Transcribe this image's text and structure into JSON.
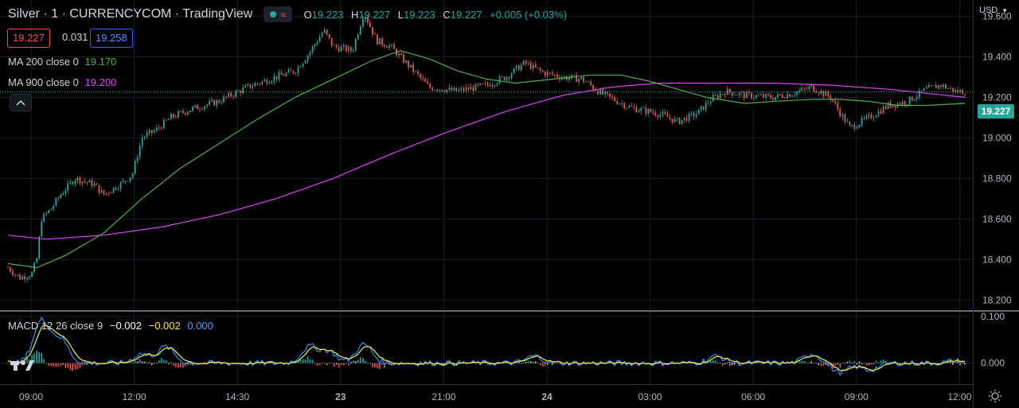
{
  "header": {
    "symbol": "Silver · 1 · CURRENCYCOM · TradingView",
    "ohlc": [
      {
        "k": "O",
        "v": "19.223"
      },
      {
        "k": "H",
        "v": "19.227"
      },
      {
        "k": "L",
        "v": "19.223"
      },
      {
        "k": "C",
        "v": "19.227"
      }
    ],
    "change": "+0.005 (+0.03%)",
    "sell_price": "19.227",
    "spread": "0.031",
    "buy_price": "19.258"
  },
  "indicators": {
    "ma200": {
      "label": "MA 200 close 0",
      "value": "19.170",
      "color": "#4caf50"
    },
    "ma900": {
      "label": "MA 900 close 0",
      "value": "19.200",
      "color": "#e040fb"
    },
    "macd": {
      "label": "MACD 12 26 close 9",
      "hist": "−0.002",
      "macd": "−0.002",
      "signal": "0.000"
    }
  },
  "currency": "USD",
  "last_price_label": "19.227",
  "colors": {
    "up": "#26a69a",
    "down": "#ef5350",
    "ma200": "#4caf50",
    "ma900": "#e040fb",
    "macd": "#2196f3",
    "signal": "#ffeb3b"
  },
  "chart_data": {
    "type": "candlestick",
    "price_axis": {
      "ticks": [
        "19.600",
        "19.400",
        "19.200",
        "19.000",
        "18.800",
        "18.600",
        "18.400",
        "18.200"
      ],
      "ylim": [
        18.15,
        19.68
      ]
    },
    "macd_axis": {
      "ticks": [
        "0.100",
        "0.000"
      ],
      "ylim": [
        -0.045,
        0.11
      ]
    },
    "time_axis": {
      "ticks": [
        "09:00",
        "12:00",
        "14:30",
        "23",
        "21:00",
        "24",
        "03:00",
        "06:00",
        "09:00",
        "12:00"
      ]
    },
    "price_series": [
      [
        0,
        18.36
      ],
      [
        0.012,
        18.31
      ],
      [
        0.025,
        18.33
      ],
      [
        0.03,
        18.4
      ],
      [
        0.035,
        18.6
      ],
      [
        0.045,
        18.65
      ],
      [
        0.055,
        18.72
      ],
      [
        0.07,
        18.8
      ],
      [
        0.09,
        18.77
      ],
      [
        0.1,
        18.72
      ],
      [
        0.12,
        18.78
      ],
      [
        0.13,
        18.82
      ],
      [
        0.14,
        19.0
      ],
      [
        0.155,
        19.04
      ],
      [
        0.17,
        19.1
      ],
      [
        0.19,
        19.14
      ],
      [
        0.22,
        19.18
      ],
      [
        0.25,
        19.25
      ],
      [
        0.28,
        19.3
      ],
      [
        0.3,
        19.33
      ],
      [
        0.315,
        19.42
      ],
      [
        0.33,
        19.53
      ],
      [
        0.34,
        19.45
      ],
      [
        0.36,
        19.43
      ],
      [
        0.372,
        19.62
      ],
      [
        0.385,
        19.48
      ],
      [
        0.4,
        19.45
      ],
      [
        0.42,
        19.35
      ],
      [
        0.44,
        19.25
      ],
      [
        0.47,
        19.23
      ],
      [
        0.5,
        19.26
      ],
      [
        0.52,
        19.3
      ],
      [
        0.54,
        19.37
      ],
      [
        0.56,
        19.32
      ],
      [
        0.58,
        19.3
      ],
      [
        0.6,
        19.29
      ],
      [
        0.62,
        19.22
      ],
      [
        0.65,
        19.15
      ],
      [
        0.68,
        19.12
      ],
      [
        0.7,
        19.08
      ],
      [
        0.72,
        19.12
      ],
      [
        0.735,
        19.19
      ],
      [
        0.75,
        19.23
      ],
      [
        0.77,
        19.21
      ],
      [
        0.8,
        19.2
      ],
      [
        0.82,
        19.22
      ],
      [
        0.84,
        19.25
      ],
      [
        0.86,
        19.2
      ],
      [
        0.87,
        19.12
      ],
      [
        0.88,
        19.05
      ],
      [
        0.9,
        19.1
      ],
      [
        0.92,
        19.16
      ],
      [
        0.94,
        19.18
      ],
      [
        0.96,
        19.24
      ],
      [
        0.975,
        19.26
      ],
      [
        0.99,
        19.23
      ],
      [
        1.0,
        19.227
      ]
    ],
    "ma200_series": [
      [
        0,
        18.38
      ],
      [
        0.03,
        18.36
      ],
      [
        0.06,
        18.42
      ],
      [
        0.1,
        18.53
      ],
      [
        0.14,
        18.7
      ],
      [
        0.18,
        18.85
      ],
      [
        0.22,
        18.97
      ],
      [
        0.26,
        19.09
      ],
      [
        0.3,
        19.2
      ],
      [
        0.34,
        19.29
      ],
      [
        0.38,
        19.38
      ],
      [
        0.41,
        19.43
      ],
      [
        0.44,
        19.39
      ],
      [
        0.47,
        19.33
      ],
      [
        0.5,
        19.29
      ],
      [
        0.53,
        19.27
      ],
      [
        0.57,
        19.29
      ],
      [
        0.61,
        19.31
      ],
      [
        0.64,
        19.31
      ],
      [
        0.67,
        19.28
      ],
      [
        0.7,
        19.24
      ],
      [
        0.73,
        19.2
      ],
      [
        0.77,
        19.17
      ],
      [
        0.8,
        19.18
      ],
      [
        0.84,
        19.19
      ],
      [
        0.87,
        19.19
      ],
      [
        0.9,
        19.18
      ],
      [
        0.93,
        19.16
      ],
      [
        0.96,
        19.16
      ],
      [
        1.0,
        19.17
      ]
    ],
    "ma900_series": [
      [
        0,
        18.52
      ],
      [
        0.04,
        18.5
      ],
      [
        0.1,
        18.52
      ],
      [
        0.16,
        18.56
      ],
      [
        0.22,
        18.62
      ],
      [
        0.28,
        18.7
      ],
      [
        0.34,
        18.8
      ],
      [
        0.4,
        18.92
      ],
      [
        0.46,
        19.03
      ],
      [
        0.52,
        19.13
      ],
      [
        0.58,
        19.21
      ],
      [
        0.63,
        19.25
      ],
      [
        0.68,
        19.27
      ],
      [
        0.74,
        19.27
      ],
      [
        0.8,
        19.27
      ],
      [
        0.86,
        19.26
      ],
      [
        0.92,
        19.24
      ],
      [
        0.96,
        19.22
      ],
      [
        1.0,
        19.2
      ]
    ],
    "macd_spikes": [
      [
        0.035,
        0.09
      ],
      [
        0.055,
        0.05
      ],
      [
        0.14,
        0.02
      ],
      [
        0.165,
        0.035
      ],
      [
        0.315,
        0.035
      ],
      [
        0.335,
        0.025
      ],
      [
        0.372,
        0.04
      ],
      [
        0.55,
        0.015
      ],
      [
        0.74,
        0.015
      ],
      [
        0.84,
        0.02
      ],
      [
        0.87,
        -0.02
      ],
      [
        0.9,
        -0.015
      ],
      [
        0.99,
        0.005
      ]
    ]
  }
}
